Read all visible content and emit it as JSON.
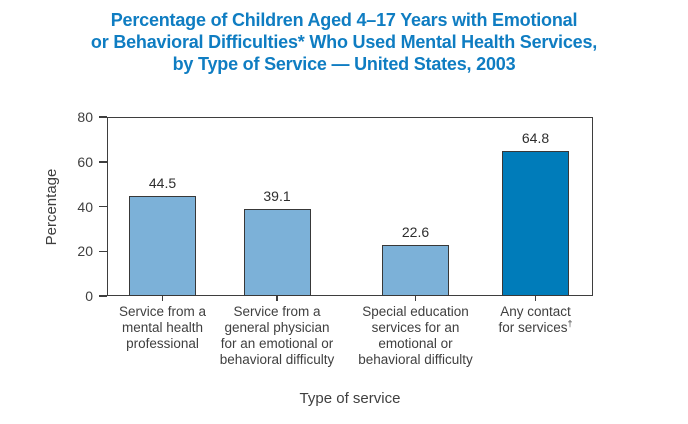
{
  "title": {
    "lines": [
      "Percentage of Children Aged 4–17 Years with Emotional",
      "or Behavioral Difficulties* Who Used Mental Health Services,",
      "by Type of Service — United States, 2003"
    ]
  },
  "chart_data": {
    "type": "bar",
    "title": "Percentage of Children Aged 4–17 Years with Emotional or Behavioral Difficulties* Who Used Mental Health Services, by Type of Service — United States, 2003",
    "categories": [
      {
        "lines": [
          "Service from a",
          "mental health",
          "professional"
        ],
        "sup": ""
      },
      {
        "lines": [
          "Service from a",
          "general physician",
          "for an emotional or",
          "behavioral difficulty"
        ],
        "sup": ""
      },
      {
        "lines": [
          "Special education",
          "services for an",
          "emotional or",
          "behavioral difficulty"
        ],
        "sup": ""
      },
      {
        "lines": [
          "Any contact",
          "for services"
        ],
        "sup": "†"
      }
    ],
    "values": [
      44.5,
      39.1,
      22.6,
      64.8
    ],
    "value_labels": [
      "44.5",
      "39.1",
      "22.6",
      "64.8"
    ],
    "xlabel": "Type of service",
    "ylabel": "Percentage",
    "ylim": [
      0,
      80
    ],
    "yticks": [
      0,
      20,
      40,
      60,
      80
    ],
    "grid": false,
    "legend": "none",
    "colors": {
      "title_text": "#0f7dc2",
      "bar_default": "#7cb1d8",
      "bar_highlight": "#007cba",
      "bar_border": "#383838",
      "axis": "#3e3e3e",
      "label_text": "#3f3f3f",
      "value_text": "#2e2e2e"
    },
    "bar_color_keys": [
      "bar_default",
      "bar_default",
      "bar_default",
      "bar_highlight"
    ]
  }
}
